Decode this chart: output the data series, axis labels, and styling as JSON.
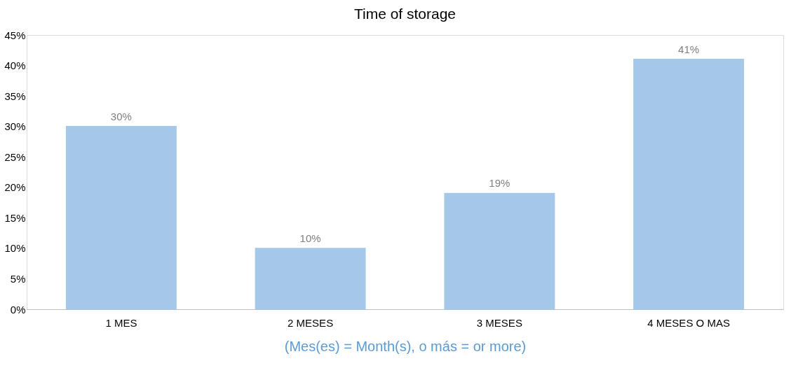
{
  "chart_data": {
    "type": "bar",
    "title": "Time of storage",
    "xlabel": "(Mes(es) = Month(s), o más = or more)",
    "categories": [
      "1 MES",
      "2 MESES",
      "3 MESES",
      "4 MESES O MAS"
    ],
    "values": [
      30,
      10,
      19,
      41
    ],
    "value_labels": [
      "30%",
      "10%",
      "19%",
      "41%"
    ],
    "color": "#9dc3e6",
    "ylim": [
      0,
      45
    ],
    "yticks": [
      {
        "value": 0,
        "label": "0%"
      },
      {
        "value": 5,
        "label": "5%"
      },
      {
        "value": 10,
        "label": "10%"
      },
      {
        "value": 15,
        "label": "15%"
      },
      {
        "value": 20,
        "label": "20%"
      },
      {
        "value": 25,
        "label": "25%"
      },
      {
        "value": 30,
        "label": "30%"
      },
      {
        "value": 35,
        "label": "35%"
      },
      {
        "value": 40,
        "label": "40%"
      },
      {
        "value": 45,
        "label": "45%"
      }
    ],
    "grid": false
  }
}
